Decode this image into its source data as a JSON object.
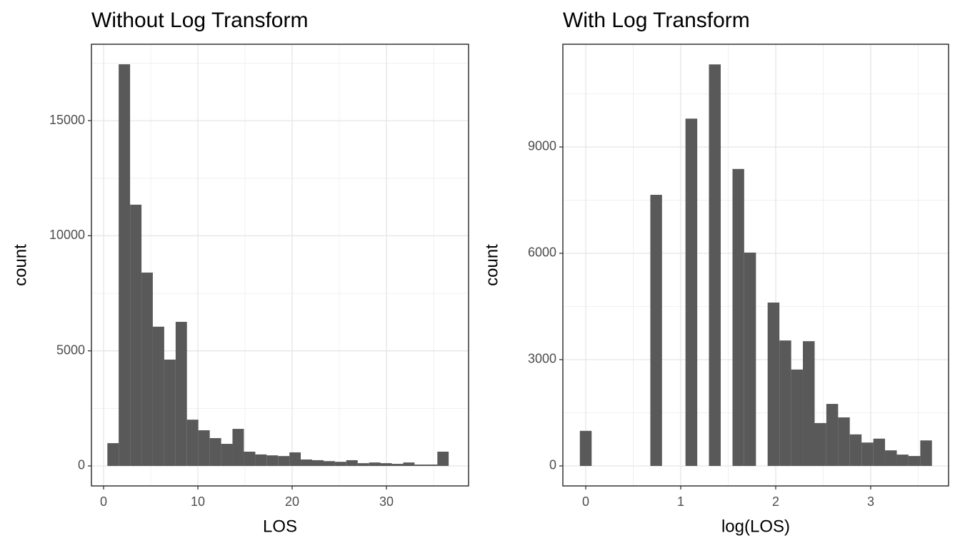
{
  "chart_data": [
    {
      "type": "histogram",
      "title": "Without Log Transform",
      "x_label": "LOS",
      "y_label": "count",
      "bins": [
        0.4,
        1.6,
        2.81,
        4.02,
        5.22,
        6.43,
        7.64,
        8.84,
        10.05,
        11.26,
        12.47,
        13.67,
        14.88,
        16.09,
        17.29,
        18.5,
        19.71,
        20.91,
        22.12,
        23.33,
        24.53,
        25.74,
        26.95,
        28.16,
        29.36,
        30.57,
        31.78,
        32.98,
        34.19,
        35.4,
        36.6
      ],
      "values": [
        990,
        17450,
        11350,
        8400,
        6050,
        4620,
        6260,
        2010,
        1550,
        1210,
        960,
        1610,
        620,
        500,
        460,
        430,
        590,
        280,
        250,
        210,
        180,
        250,
        120,
        150,
        120,
        90,
        150,
        60,
        60,
        620
      ],
      "color": "#595959",
      "xlim": [
        -1.29,
        38.71
      ],
      "ylim": [
        -868,
        18320
      ],
      "xticks": [
        0,
        10,
        20,
        30
      ],
      "yticks": [
        0,
        5000,
        10000,
        15000
      ],
      "grid": true
    },
    {
      "type": "histogram",
      "title": "With Log Transform",
      "x_label": "log(LOS)",
      "y_label": "count",
      "bins": [
        -0.062,
        0.062,
        0.185,
        0.309,
        0.432,
        0.556,
        0.68,
        0.803,
        0.927,
        1.05,
        1.174,
        1.297,
        1.421,
        1.545,
        1.668,
        1.792,
        1.915,
        2.039,
        2.163,
        2.286,
        2.41,
        2.533,
        2.657,
        2.78,
        2.904,
        3.028,
        3.151,
        3.275,
        3.398,
        3.522,
        3.645
      ],
      "values": [
        990,
        0,
        0,
        0,
        0,
        0,
        7650,
        0,
        0,
        9800,
        0,
        11330,
        0,
        8380,
        6020,
        0,
        4610,
        3540,
        2720,
        3520,
        1210,
        1750,
        1370,
        890,
        660,
        770,
        440,
        320,
        280,
        720
      ],
      "color": "#595959",
      "xlim": [
        -0.241,
        3.82
      ],
      "ylim": [
        -564,
        11899
      ],
      "xticks": [
        0,
        1,
        2,
        3
      ],
      "yticks": [
        0,
        3000,
        6000,
        9000
      ],
      "grid": true
    }
  ]
}
